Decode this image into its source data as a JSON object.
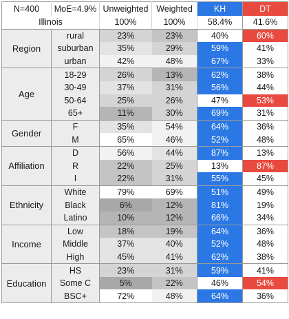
{
  "header": {
    "row1": {
      "n": "N=400",
      "moe": "MoE=4.9%",
      "unweighted": "Unweighted",
      "weighted": "Weighted",
      "kh": "KH",
      "dt": "DT"
    },
    "row2": {
      "label": "Illinois",
      "unweighted": "100%",
      "weighted": "100%",
      "kh": "58.4%",
      "dt": "41.6%"
    }
  },
  "colors": {
    "kh_strong": "#2b78e4",
    "dt_strong": "#e84a3f",
    "neutral": "#ffffff",
    "gray_scale": [
      "#ffffff",
      "#f2f2f2",
      "#e3e3e3",
      "#d4d4d4",
      "#c4c4c4",
      "#b5b5b5",
      "#a8a8a8"
    ]
  },
  "groups": [
    {
      "name": "Region",
      "rows": [
        {
          "label": "rural",
          "unweighted": "23%",
          "weighted": "23%",
          "kh": "40%",
          "dt": "60%",
          "uw_shade": 3,
          "w_shade": 4,
          "kh_strong": false,
          "dt_strong": true
        },
        {
          "label": "suburban",
          "unweighted": "35%",
          "weighted": "29%",
          "kh": "59%",
          "dt": "41%",
          "uw_shade": 2,
          "w_shade": 3,
          "kh_strong": true,
          "dt_strong": false
        },
        {
          "label": "urban",
          "unweighted": "42%",
          "weighted": "48%",
          "kh": "67%",
          "dt": "33%",
          "uw_shade": 1,
          "w_shade": 1,
          "kh_strong": true,
          "dt_strong": false
        }
      ]
    },
    {
      "name": "Age",
      "rows": [
        {
          "label": "18-29",
          "unweighted": "26%",
          "weighted": "13%",
          "kh": "62%",
          "dt": "38%",
          "uw_shade": 3,
          "w_shade": 5,
          "kh_strong": true,
          "dt_strong": false
        },
        {
          "label": "30-49",
          "unweighted": "37%",
          "weighted": "31%",
          "kh": "56%",
          "dt": "44%",
          "uw_shade": 2,
          "w_shade": 3,
          "kh_strong": true,
          "dt_strong": false
        },
        {
          "label": "50-64",
          "unweighted": "25%",
          "weighted": "26%",
          "kh": "47%",
          "dt": "53%",
          "uw_shade": 3,
          "w_shade": 3,
          "kh_strong": false,
          "dt_strong": true
        },
        {
          "label": "65+",
          "unweighted": "11%",
          "weighted": "30%",
          "kh": "69%",
          "dt": "31%",
          "uw_shade": 5,
          "w_shade": 3,
          "kh_strong": true,
          "dt_strong": false
        }
      ]
    },
    {
      "name": "Gender",
      "rows": [
        {
          "label": "F",
          "unweighted": "35%",
          "weighted": "54%",
          "kh": "64%",
          "dt": "36%",
          "uw_shade": 2,
          "w_shade": 1,
          "kh_strong": true,
          "dt_strong": false
        },
        {
          "label": "M",
          "unweighted": "65%",
          "weighted": "46%",
          "kh": "52%",
          "dt": "48%",
          "uw_shade": 0,
          "w_shade": 1,
          "kh_strong": true,
          "dt_strong": false
        }
      ]
    },
    {
      "name": "Affiliation",
      "rows": [
        {
          "label": "D",
          "unweighted": "56%",
          "weighted": "44%",
          "kh": "87%",
          "dt": "13%",
          "uw_shade": 1,
          "w_shade": 2,
          "kh_strong": true,
          "dt_strong": false
        },
        {
          "label": "R",
          "unweighted": "22%",
          "weighted": "25%",
          "kh": "13%",
          "dt": "87%",
          "uw_shade": 4,
          "w_shade": 3,
          "kh_strong": false,
          "dt_strong": true
        },
        {
          "label": "I",
          "unweighted": "22%",
          "weighted": "31%",
          "kh": "55%",
          "dt": "45%",
          "uw_shade": 4,
          "w_shade": 3,
          "kh_strong": true,
          "dt_strong": false
        }
      ]
    },
    {
      "name": "Ethnicity",
      "rows": [
        {
          "label": "White",
          "unweighted": "79%",
          "weighted": "69%",
          "kh": "51%",
          "dt": "49%",
          "uw_shade": 0,
          "w_shade": 0,
          "kh_strong": true,
          "dt_strong": false
        },
        {
          "label": "Black",
          "unweighted": "6%",
          "weighted": "12%",
          "kh": "81%",
          "dt": "19%",
          "uw_shade": 6,
          "w_shade": 5,
          "kh_strong": true,
          "dt_strong": false
        },
        {
          "label": "Latino",
          "unweighted": "10%",
          "weighted": "12%",
          "kh": "66%",
          "dt": "34%",
          "uw_shade": 5,
          "w_shade": 5,
          "kh_strong": true,
          "dt_strong": false
        }
      ]
    },
    {
      "name": "Income",
      "rows": [
        {
          "label": "Low",
          "unweighted": "18%",
          "weighted": "19%",
          "kh": "64%",
          "dt": "36%",
          "uw_shade": 4,
          "w_shade": 4,
          "kh_strong": true,
          "dt_strong": false
        },
        {
          "label": "Middle",
          "unweighted": "37%",
          "weighted": "40%",
          "kh": "52%",
          "dt": "48%",
          "uw_shade": 2,
          "w_shade": 2,
          "kh_strong": true,
          "dt_strong": false
        },
        {
          "label": "High",
          "unweighted": "45%",
          "weighted": "41%",
          "kh": "62%",
          "dt": "38%",
          "uw_shade": 2,
          "w_shade": 2,
          "kh_strong": true,
          "dt_strong": false
        }
      ]
    },
    {
      "name": "Education",
      "rows": [
        {
          "label": "HS",
          "unweighted": "23%",
          "weighted": "31%",
          "kh": "59%",
          "dt": "41%",
          "uw_shade": 3,
          "w_shade": 3,
          "kh_strong": true,
          "dt_strong": false
        },
        {
          "label": "Some C",
          "unweighted": "5%",
          "weighted": "22%",
          "kh": "46%",
          "dt": "54%",
          "uw_shade": 6,
          "w_shade": 4,
          "kh_strong": false,
          "dt_strong": true
        },
        {
          "label": "BSC+",
          "unweighted": "72%",
          "weighted": "48%",
          "kh": "64%",
          "dt": "36%",
          "uw_shade": 0,
          "w_shade": 1,
          "kh_strong": true,
          "dt_strong": false
        }
      ]
    }
  ]
}
